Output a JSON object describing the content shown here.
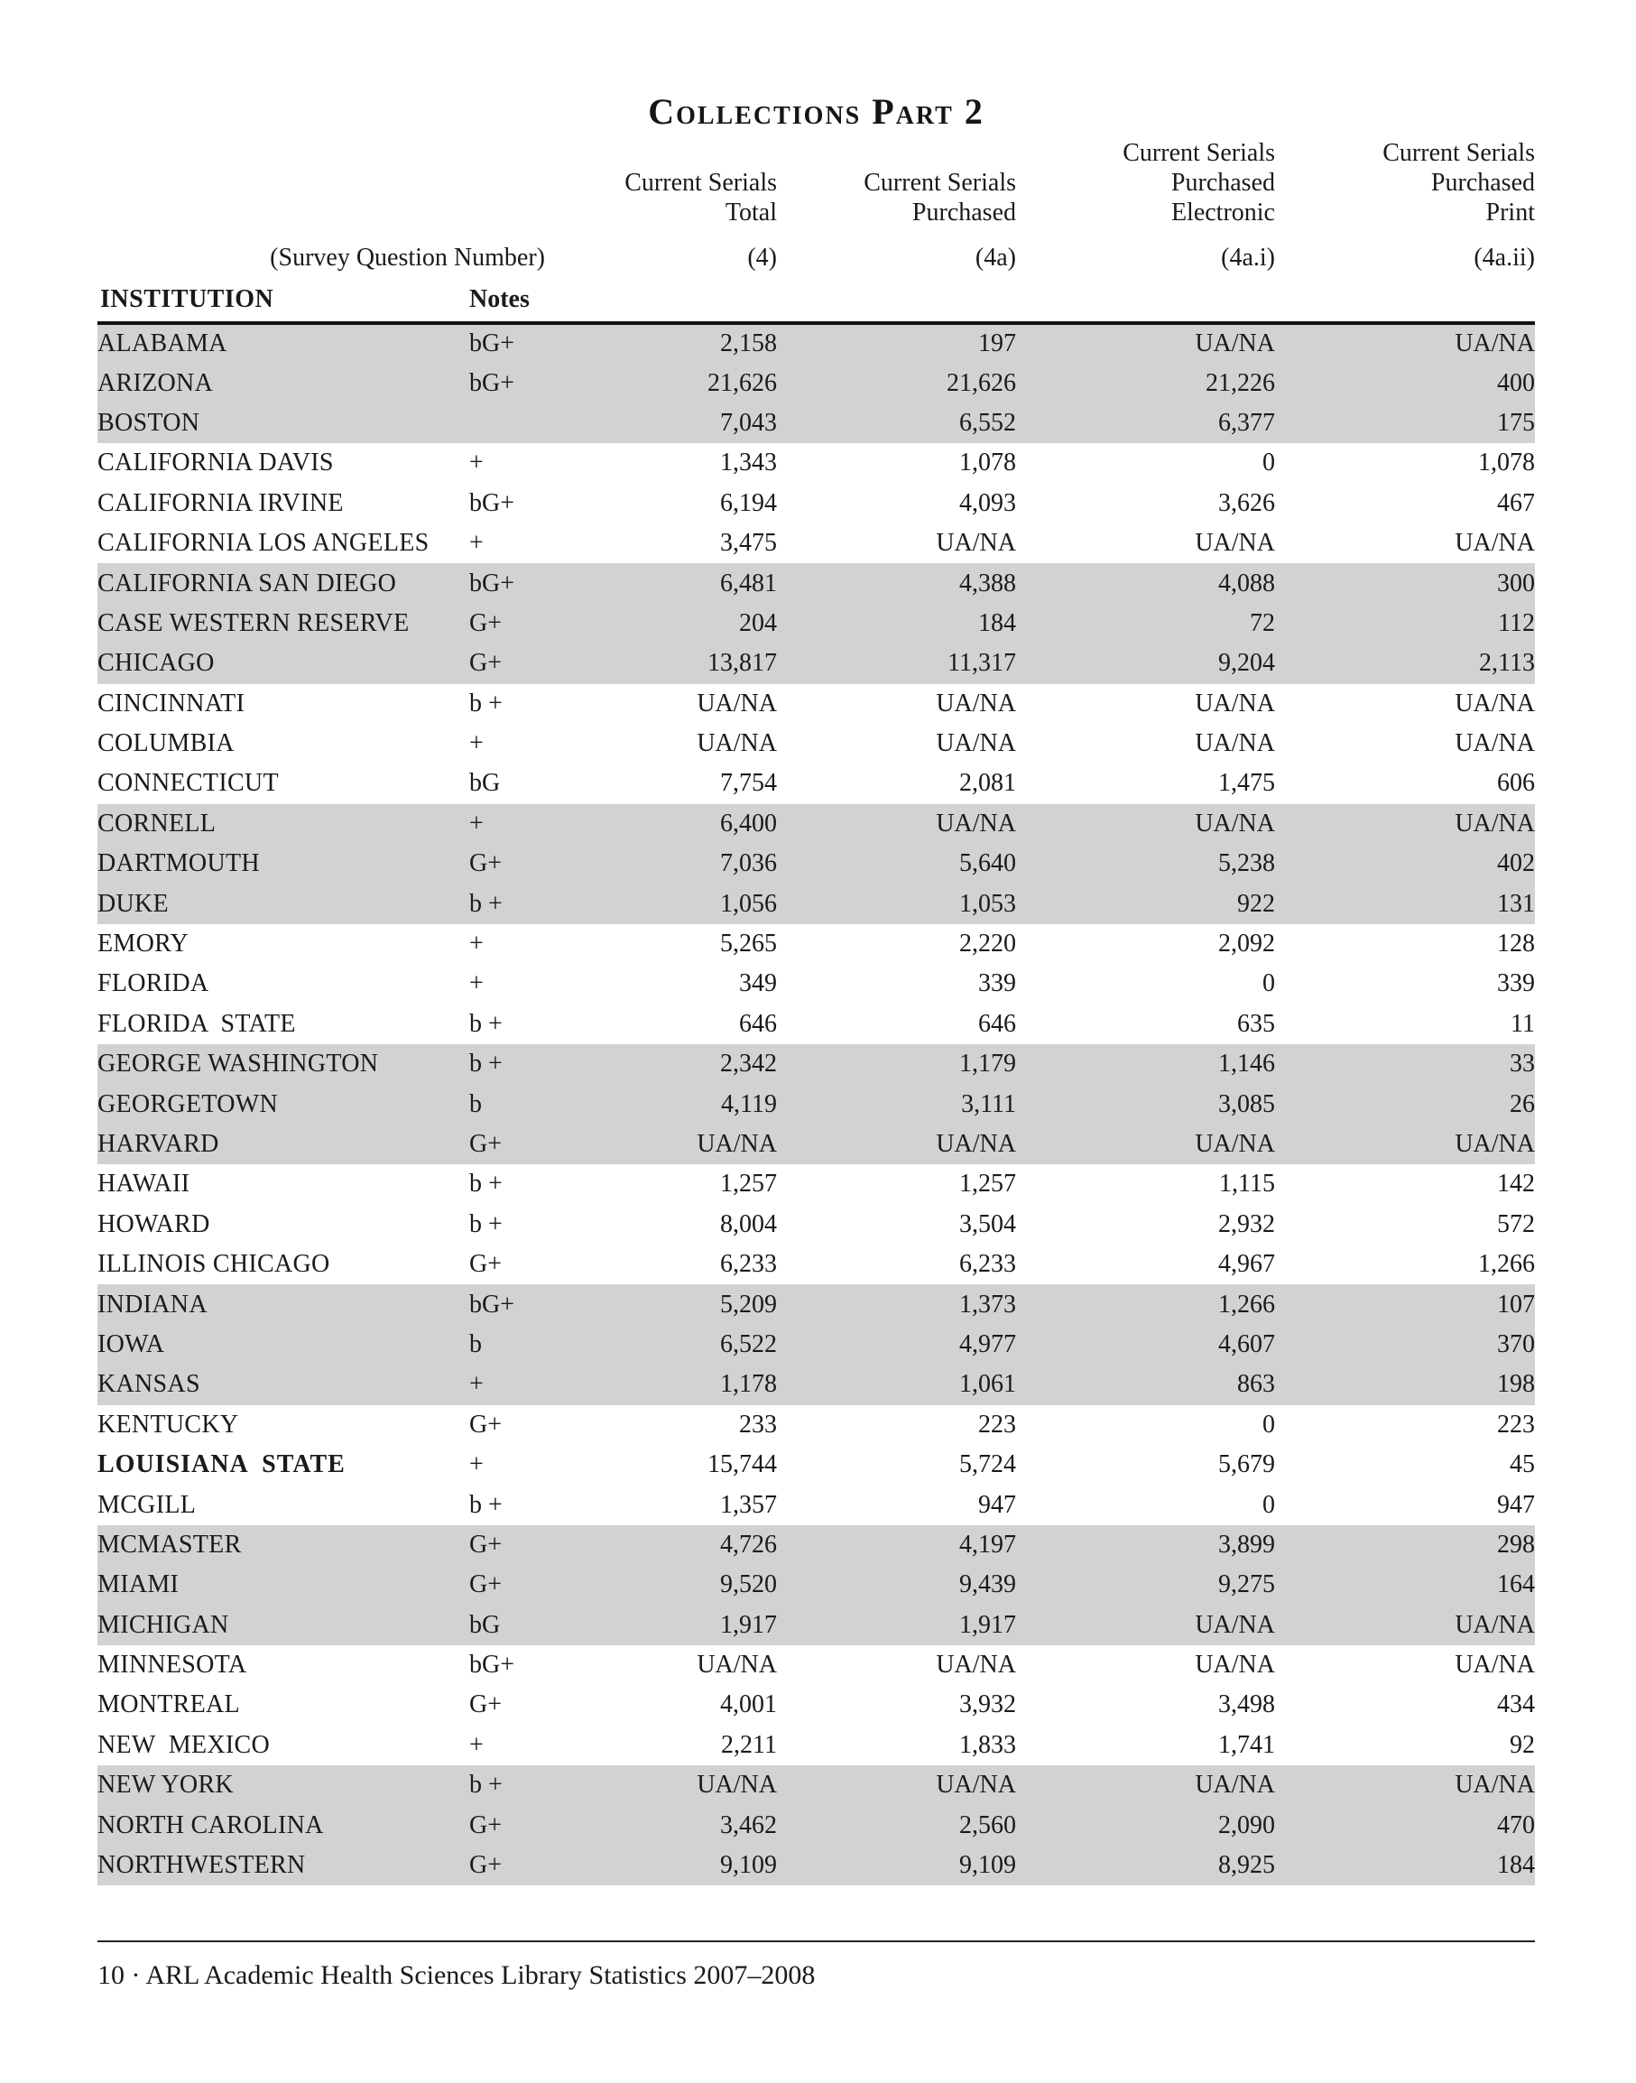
{
  "page": {
    "title": "Collections Part 2",
    "footer": "10 · ARL Academic Health Sciences Library Statistics 2007–2008"
  },
  "colors": {
    "row_shade": "#d2d2d2",
    "text": "#1a1a1a",
    "rule": "#111111"
  },
  "table": {
    "survey_label": "(Survey Question Number)",
    "institution_header": "INSTITUTION",
    "notes_header": "Notes",
    "columns": [
      {
        "header": "Current Serials\nTotal",
        "code": "(4)"
      },
      {
        "header": "Current Serials\nPurchased",
        "code": "(4a)"
      },
      {
        "header": "Current Serials\nPurchased\nElectronic",
        "code": "(4a.i)"
      },
      {
        "header": "Current Serials\nPurchased\nPrint",
        "code": "(4a.ii)"
      }
    ],
    "rows": [
      {
        "institution": "ALABAMA",
        "notes": "bG+",
        "values": [
          "2,158",
          "197",
          "UA/NA",
          "UA/NA"
        ],
        "shaded": true,
        "bold": false
      },
      {
        "institution": "ARIZONA",
        "notes": "bG+",
        "values": [
          "21,626",
          "21,626",
          "21,226",
          "400"
        ],
        "shaded": true,
        "bold": false
      },
      {
        "institution": "BOSTON",
        "notes": "",
        "values": [
          "7,043",
          "6,552",
          "6,377",
          "175"
        ],
        "shaded": true,
        "bold": false
      },
      {
        "institution": "CALIFORNIA DAVIS",
        "notes": "+",
        "values": [
          "1,343",
          "1,078",
          "0",
          "1,078"
        ],
        "shaded": false,
        "bold": false
      },
      {
        "institution": "CALIFORNIA IRVINE",
        "notes": "bG+",
        "values": [
          "6,194",
          "4,093",
          "3,626",
          "467"
        ],
        "shaded": false,
        "bold": false
      },
      {
        "institution": "CALIFORNIA LOS ANGELES",
        "notes": "+",
        "values": [
          "3,475",
          "UA/NA",
          "UA/NA",
          "UA/NA"
        ],
        "shaded": false,
        "bold": false
      },
      {
        "institution": "CALIFORNIA SAN DIEGO",
        "notes": "bG+",
        "values": [
          "6,481",
          "4,388",
          "4,088",
          "300"
        ],
        "shaded": true,
        "bold": false
      },
      {
        "institution": "CASE WESTERN RESERVE",
        "notes": "G+",
        "values": [
          "204",
          "184",
          "72",
          "112"
        ],
        "shaded": true,
        "bold": false
      },
      {
        "institution": "CHICAGO",
        "notes": "G+",
        "values": [
          "13,817",
          "11,317",
          "9,204",
          "2,113"
        ],
        "shaded": true,
        "bold": false
      },
      {
        "institution": "CINCINNATI",
        "notes": "b +",
        "values": [
          "UA/NA",
          "UA/NA",
          "UA/NA",
          "UA/NA"
        ],
        "shaded": false,
        "bold": false
      },
      {
        "institution": "COLUMBIA",
        "notes": "+",
        "values": [
          "UA/NA",
          "UA/NA",
          "UA/NA",
          "UA/NA"
        ],
        "shaded": false,
        "bold": false
      },
      {
        "institution": "CONNECTICUT",
        "notes": "bG",
        "values": [
          "7,754",
          "2,081",
          "1,475",
          "606"
        ],
        "shaded": false,
        "bold": false
      },
      {
        "institution": "CORNELL",
        "notes": "+",
        "values": [
          "6,400",
          "UA/NA",
          "UA/NA",
          "UA/NA"
        ],
        "shaded": true,
        "bold": false
      },
      {
        "institution": "DARTMOUTH",
        "notes": "G+",
        "values": [
          "7,036",
          "5,640",
          "5,238",
          "402"
        ],
        "shaded": true,
        "bold": false
      },
      {
        "institution": "DUKE",
        "notes": "b +",
        "values": [
          "1,056",
          "1,053",
          "922",
          "131"
        ],
        "shaded": true,
        "bold": false
      },
      {
        "institution": "EMORY",
        "notes": "+",
        "values": [
          "5,265",
          "2,220",
          "2,092",
          "128"
        ],
        "shaded": false,
        "bold": false
      },
      {
        "institution": "FLORIDA",
        "notes": "+",
        "values": [
          "349",
          "339",
          "0",
          "339"
        ],
        "shaded": false,
        "bold": false
      },
      {
        "institution": "FLORIDA  STATE",
        "notes": "b +",
        "values": [
          "646",
          "646",
          "635",
          "11"
        ],
        "shaded": false,
        "bold": false
      },
      {
        "institution": "GEORGE WASHINGTON",
        "notes": "b +",
        "values": [
          "2,342",
          "1,179",
          "1,146",
          "33"
        ],
        "shaded": true,
        "bold": false
      },
      {
        "institution": "GEORGETOWN",
        "notes": "b",
        "values": [
          "4,119",
          "3,111",
          "3,085",
          "26"
        ],
        "shaded": true,
        "bold": false
      },
      {
        "institution": "HARVARD",
        "notes": "G+",
        "values": [
          "UA/NA",
          "UA/NA",
          "UA/NA",
          "UA/NA"
        ],
        "shaded": true,
        "bold": false
      },
      {
        "institution": "HAWAII",
        "notes": "b +",
        "values": [
          "1,257",
          "1,257",
          "1,115",
          "142"
        ],
        "shaded": false,
        "bold": false
      },
      {
        "institution": "HOWARD",
        "notes": "b +",
        "values": [
          "8,004",
          "3,504",
          "2,932",
          "572"
        ],
        "shaded": false,
        "bold": false
      },
      {
        "institution": "ILLINOIS CHICAGO",
        "notes": "G+",
        "values": [
          "6,233",
          "6,233",
          "4,967",
          "1,266"
        ],
        "shaded": false,
        "bold": false
      },
      {
        "institution": "INDIANA",
        "notes": "bG+",
        "values": [
          "5,209",
          "1,373",
          "1,266",
          "107"
        ],
        "shaded": true,
        "bold": false
      },
      {
        "institution": "IOWA",
        "notes": "b",
        "values": [
          "6,522",
          "4,977",
          "4,607",
          "370"
        ],
        "shaded": true,
        "bold": false
      },
      {
        "institution": "KANSAS",
        "notes": "+",
        "values": [
          "1,178",
          "1,061",
          "863",
          "198"
        ],
        "shaded": true,
        "bold": false
      },
      {
        "institution": "KENTUCKY",
        "notes": "G+",
        "values": [
          "233",
          "223",
          "0",
          "223"
        ],
        "shaded": false,
        "bold": false
      },
      {
        "institution": "LOUISIANA  STATE",
        "notes": "+",
        "values": [
          "15,744",
          "5,724",
          "5,679",
          "45"
        ],
        "shaded": false,
        "bold": true
      },
      {
        "institution": "MCGILL",
        "notes": "b +",
        "values": [
          "1,357",
          "947",
          "0",
          "947"
        ],
        "shaded": false,
        "bold": false
      },
      {
        "institution": "MCMASTER",
        "notes": "G+",
        "values": [
          "4,726",
          "4,197",
          "3,899",
          "298"
        ],
        "shaded": true,
        "bold": false
      },
      {
        "institution": "MIAMI",
        "notes": "G+",
        "values": [
          "9,520",
          "9,439",
          "9,275",
          "164"
        ],
        "shaded": true,
        "bold": false
      },
      {
        "institution": "MICHIGAN",
        "notes": "bG",
        "values": [
          "1,917",
          "1,917",
          "UA/NA",
          "UA/NA"
        ],
        "shaded": true,
        "bold": false
      },
      {
        "institution": "MINNESOTA",
        "notes": "bG+",
        "values": [
          "UA/NA",
          "UA/NA",
          "UA/NA",
          "UA/NA"
        ],
        "shaded": false,
        "bold": false
      },
      {
        "institution": "MONTREAL",
        "notes": "G+",
        "values": [
          "4,001",
          "3,932",
          "3,498",
          "434"
        ],
        "shaded": false,
        "bold": false
      },
      {
        "institution": "NEW  MEXICO",
        "notes": "+",
        "values": [
          "2,211",
          "1,833",
          "1,741",
          "92"
        ],
        "shaded": false,
        "bold": false
      },
      {
        "institution": "NEW YORK",
        "notes": "b +",
        "values": [
          "UA/NA",
          "UA/NA",
          "UA/NA",
          "UA/NA"
        ],
        "shaded": true,
        "bold": false
      },
      {
        "institution": "NORTH CAROLINA",
        "notes": "G+",
        "values": [
          "3,462",
          "2,560",
          "2,090",
          "470"
        ],
        "shaded": true,
        "bold": false
      },
      {
        "institution": "NORTHWESTERN",
        "notes": "G+",
        "values": [
          "9,109",
          "9,109",
          "8,925",
          "184"
        ],
        "shaded": true,
        "bold": false
      }
    ]
  }
}
